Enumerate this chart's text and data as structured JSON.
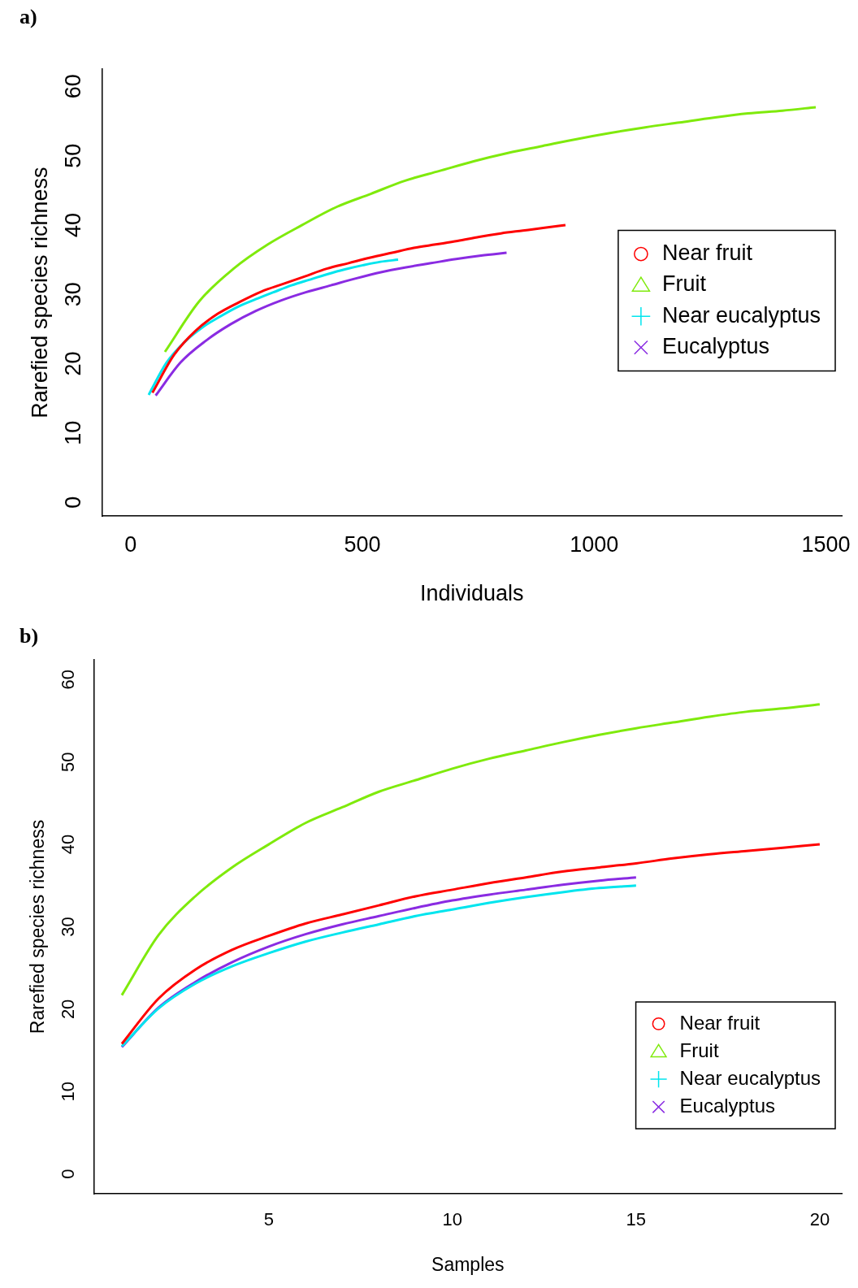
{
  "chart_data": [
    {
      "type": "line",
      "title": "a)",
      "xlabel": "Individuals",
      "ylabel": "Rarefied species richness",
      "xlim": [
        -62,
        1534
      ],
      "xticks": [
        0,
        500,
        1000,
        1500
      ],
      "ylim": [
        -2,
        62.5
      ],
      "yticks": [
        0,
        10,
        20,
        30,
        40,
        50,
        60
      ],
      "grid": false,
      "legend": "right",
      "series": [
        {
          "name": "Near fruit",
          "color": "#ff0000",
          "x": [
            47,
            94,
            141,
            188,
            235,
            282,
            329,
            376,
            423,
            470,
            517,
            564,
            611,
            658,
            705,
            752,
            799,
            846,
            893,
            938
          ],
          "values": [
            15.8,
            21.3,
            24.8,
            27.2,
            28.9,
            30.4,
            31.5,
            32.6,
            33.7,
            34.5,
            35.3,
            36,
            36.7,
            37.2,
            37.7,
            38.3,
            38.8,
            39.2,
            39.6,
            40
          ]
        },
        {
          "name": "Fruit",
          "color": "#7fea0c",
          "x": [
            74,
            148,
            222,
            296,
            370,
            444,
            518,
            592,
            666,
            740,
            814,
            888,
            962,
            1036,
            1110,
            1184,
            1258,
            1332,
            1406,
            1478
          ],
          "values": [
            21.7,
            29,
            33.7,
            37.2,
            40,
            42.6,
            44.5,
            46.4,
            47.8,
            49.2,
            50.4,
            51.4,
            52.4,
            53.3,
            54.1,
            54.8,
            55.5,
            56.1,
            56.5,
            57
          ]
        },
        {
          "name": "Near eucalyptus",
          "color": "#00e5ee",
          "x": [
            39,
            77,
            116,
            154,
            193,
            231,
            270,
            308,
            347,
            385,
            424,
            462,
            501,
            539,
            577
          ],
          "values": [
            15.5,
            20.1,
            23.1,
            25.2,
            26.8,
            28.2,
            29.3,
            30.3,
            31.3,
            32.1,
            32.9,
            33.6,
            34.2,
            34.7,
            35
          ]
        },
        {
          "name": "Eucalyptus",
          "color": "#8a2be2",
          "x": [
            54,
            108,
            162,
            216,
            270,
            324,
            378,
            432,
            486,
            540,
            594,
            648,
            702,
            756,
            811
          ],
          "values": [
            15.4,
            20.2,
            23.3,
            25.7,
            27.6,
            29.1,
            30.3,
            31.3,
            32.3,
            33.2,
            33.9,
            34.5,
            35.1,
            35.6,
            36
          ]
        }
      ]
    },
    {
      "type": "line",
      "title": "b)",
      "xlabel": "Samples",
      "ylabel": "Rarefied species richness",
      "xlim": [
        0.24,
        20.6
      ],
      "xticks": [
        5,
        10,
        15,
        20
      ],
      "ylim": [
        -2.4,
        62.4
      ],
      "yticks": [
        0,
        10,
        20,
        30,
        40,
        50,
        60
      ],
      "grid": false,
      "legend": "bottom right",
      "series": [
        {
          "name": "Near fruit",
          "color": "#ff0000",
          "x": [
            1,
            2,
            3,
            4,
            5,
            6,
            7,
            8,
            9,
            10,
            11,
            12,
            13,
            14,
            15,
            16,
            17,
            18,
            19,
            20
          ],
          "values": [
            15.8,
            21.3,
            24.8,
            27.2,
            28.9,
            30.4,
            31.5,
            32.6,
            33.7,
            34.5,
            35.3,
            36,
            36.7,
            37.2,
            37.7,
            38.3,
            38.8,
            39.2,
            39.6,
            40
          ]
        },
        {
          "name": "Fruit",
          "color": "#7fea0c",
          "x": [
            1,
            2,
            3,
            4,
            5,
            6,
            7,
            8,
            9,
            10,
            11,
            12,
            13,
            14,
            15,
            16,
            17,
            18,
            19,
            20
          ],
          "values": [
            21.7,
            29,
            33.7,
            37.2,
            40,
            42.6,
            44.5,
            46.4,
            47.8,
            49.2,
            50.4,
            51.4,
            52.4,
            53.3,
            54.1,
            54.8,
            55.5,
            56.1,
            56.5,
            57
          ]
        },
        {
          "name": "Near eucalyptus",
          "color": "#00e5ee",
          "x": [
            1,
            2,
            3,
            4,
            5,
            6,
            7,
            8,
            9,
            10,
            11,
            12,
            13,
            14,
            15
          ],
          "values": [
            15.5,
            20.1,
            23.1,
            25.2,
            26.8,
            28.2,
            29.3,
            30.3,
            31.3,
            32.1,
            32.9,
            33.6,
            34.2,
            34.7,
            35
          ]
        },
        {
          "name": "Eucalyptus",
          "color": "#8a2be2",
          "x": [
            1,
            2,
            3,
            4,
            5,
            6,
            7,
            8,
            9,
            10,
            11,
            12,
            13,
            14,
            15
          ],
          "values": [
            15.4,
            20.2,
            23.3,
            25.7,
            27.6,
            29.1,
            30.3,
            31.3,
            32.3,
            33.2,
            33.9,
            34.5,
            35.1,
            35.6,
            36
          ]
        }
      ]
    }
  ]
}
